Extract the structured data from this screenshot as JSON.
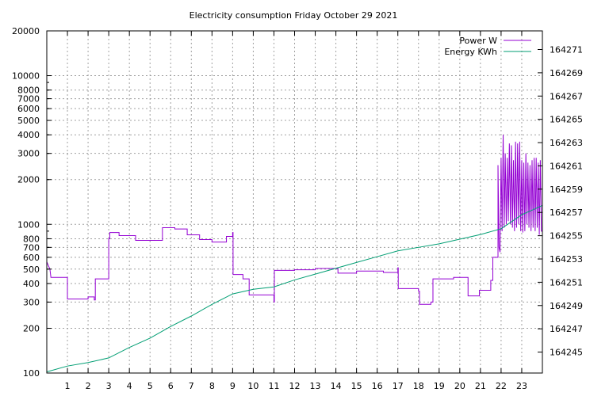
{
  "chart_data": {
    "type": "line",
    "title": "Electricity consumption Friday October 29 2021",
    "grid": true,
    "legend_position": "top-right",
    "x_axis": {
      "range": [
        0,
        24
      ],
      "ticks": [
        1,
        2,
        3,
        4,
        5,
        6,
        7,
        8,
        9,
        10,
        11,
        12,
        13,
        14,
        15,
        16,
        17,
        18,
        19,
        20,
        21,
        22,
        23
      ]
    },
    "y_axis_left": {
      "scale": "log",
      "range": [
        100,
        20000
      ],
      "ticks": [
        100,
        200,
        300,
        400,
        500,
        600,
        700,
        800,
        1000,
        2000,
        3000,
        4000,
        5000,
        6000,
        7000,
        8000,
        10000,
        20000
      ]
    },
    "y_axis_right": {
      "scale": "linear",
      "range": [
        164243.2,
        164272.6
      ],
      "ticks": [
        164245,
        164247,
        164249,
        164251,
        164253,
        164255,
        164257,
        164259,
        164261,
        164263,
        164265,
        164267,
        164269,
        164271
      ]
    },
    "series": [
      {
        "name": "Power W",
        "color": "#9400d3",
        "axis": "left",
        "points": [
          [
            0,
            560
          ],
          [
            0.15,
            500
          ],
          [
            0.2,
            440
          ],
          [
            1.0,
            440
          ],
          [
            1.0,
            315
          ],
          [
            2.0,
            315
          ],
          [
            2.0,
            325
          ],
          [
            2.3,
            325
          ],
          [
            2.3,
            310
          ],
          [
            2.35,
            310
          ],
          [
            2.35,
            430
          ],
          [
            3.0,
            430
          ],
          [
            3.0,
            800
          ],
          [
            3.05,
            800
          ],
          [
            3.05,
            880
          ],
          [
            3.5,
            880
          ],
          [
            3.5,
            840
          ],
          [
            4.3,
            840
          ],
          [
            4.3,
            780
          ],
          [
            5.6,
            780
          ],
          [
            5.6,
            950
          ],
          [
            6.2,
            950
          ],
          [
            6.2,
            930
          ],
          [
            6.8,
            930
          ],
          [
            6.8,
            850
          ],
          [
            7.4,
            850
          ],
          [
            7.4,
            790
          ],
          [
            8.0,
            790
          ],
          [
            8.0,
            760
          ],
          [
            8.7,
            760
          ],
          [
            8.7,
            830
          ],
          [
            9.0,
            830
          ],
          [
            9.0,
            880
          ],
          [
            9.02,
            880
          ],
          [
            9.02,
            460
          ],
          [
            9.5,
            460
          ],
          [
            9.5,
            430
          ],
          [
            9.8,
            430
          ],
          [
            9.8,
            335
          ],
          [
            11.0,
            335
          ],
          [
            11.0,
            300
          ],
          [
            11.02,
            300
          ],
          [
            11.02,
            490
          ],
          [
            12.0,
            490
          ],
          [
            12.0,
            495
          ],
          [
            13.0,
            495
          ],
          [
            13.0,
            505
          ],
          [
            14.1,
            505
          ],
          [
            14.1,
            470
          ],
          [
            15.0,
            470
          ],
          [
            15.0,
            485
          ],
          [
            16.3,
            485
          ],
          [
            16.3,
            475
          ],
          [
            17.0,
            475
          ],
          [
            17.0,
            510
          ],
          [
            17.02,
            510
          ],
          [
            17.02,
            370
          ],
          [
            18.0,
            370
          ],
          [
            18.0,
            355
          ],
          [
            18.05,
            355
          ],
          [
            18.05,
            290
          ],
          [
            18.6,
            290
          ],
          [
            18.6,
            300
          ],
          [
            18.7,
            300
          ],
          [
            18.7,
            430
          ],
          [
            19.7,
            430
          ],
          [
            19.7,
            440
          ],
          [
            20.4,
            440
          ],
          [
            20.4,
            330
          ],
          [
            20.95,
            330
          ],
          [
            20.95,
            360
          ],
          [
            21.5,
            360
          ],
          [
            21.5,
            420
          ],
          [
            21.6,
            420
          ],
          [
            21.6,
            600
          ],
          [
            21.85,
            600
          ],
          [
            21.85,
            2500
          ],
          [
            21.9,
            700
          ],
          [
            21.95,
            650
          ],
          [
            22.0,
            2800
          ],
          [
            22.05,
            900
          ],
          [
            22.1,
            4000
          ],
          [
            22.15,
            950
          ],
          [
            22.2,
            3000
          ],
          [
            22.25,
            1000
          ],
          [
            22.3,
            2800
          ],
          [
            22.35,
            1050
          ],
          [
            22.4,
            3500
          ],
          [
            22.45,
            1000
          ],
          [
            22.5,
            3400
          ],
          [
            22.55,
            950
          ],
          [
            22.6,
            2700
          ],
          [
            22.65,
            900
          ],
          [
            22.7,
            3600
          ],
          [
            22.75,
            950
          ],
          [
            22.8,
            3500
          ],
          [
            22.85,
            1000
          ],
          [
            22.9,
            3600
          ],
          [
            22.95,
            900
          ],
          [
            23.0,
            2700
          ],
          [
            23.05,
            880
          ],
          [
            23.1,
            2600
          ],
          [
            23.15,
            900
          ],
          [
            23.2,
            3000
          ],
          [
            23.25,
            1000
          ],
          [
            23.3,
            2600
          ],
          [
            23.35,
            950
          ],
          [
            23.4,
            2500
          ],
          [
            23.45,
            900
          ],
          [
            23.5,
            2700
          ],
          [
            23.55,
            950
          ],
          [
            23.6,
            2800
          ],
          [
            23.65,
            900
          ],
          [
            23.7,
            2800
          ],
          [
            23.75,
            950
          ],
          [
            23.8,
            2600
          ],
          [
            23.85,
            850
          ],
          [
            23.9,
            2700
          ],
          [
            23.95,
            900
          ],
          [
            24.0,
            900
          ]
        ]
      },
      {
        "name": "Energy KWh",
        "color": "#009e73",
        "axis": "right",
        "points": [
          [
            0,
            164243.3
          ],
          [
            1,
            164243.8
          ],
          [
            2,
            164244.1
          ],
          [
            3,
            164244.5
          ],
          [
            4,
            164245.4
          ],
          [
            5,
            164246.2
          ],
          [
            6,
            164247.2
          ],
          [
            7,
            164248.1
          ],
          [
            8,
            164249.1
          ],
          [
            9,
            164250.0
          ],
          [
            10,
            164250.4
          ],
          [
            11,
            164250.6
          ],
          [
            12,
            164251.2
          ],
          [
            13,
            164251.7
          ],
          [
            14,
            164252.2
          ],
          [
            15,
            164252.7
          ],
          [
            16,
            164253.2
          ],
          [
            17,
            164253.7
          ],
          [
            18,
            164254.0
          ],
          [
            19,
            164254.3
          ],
          [
            20,
            164254.7
          ],
          [
            21,
            164255.1
          ],
          [
            22,
            164255.6
          ],
          [
            23,
            164256.8
          ],
          [
            24,
            164257.6
          ]
        ]
      }
    ]
  }
}
